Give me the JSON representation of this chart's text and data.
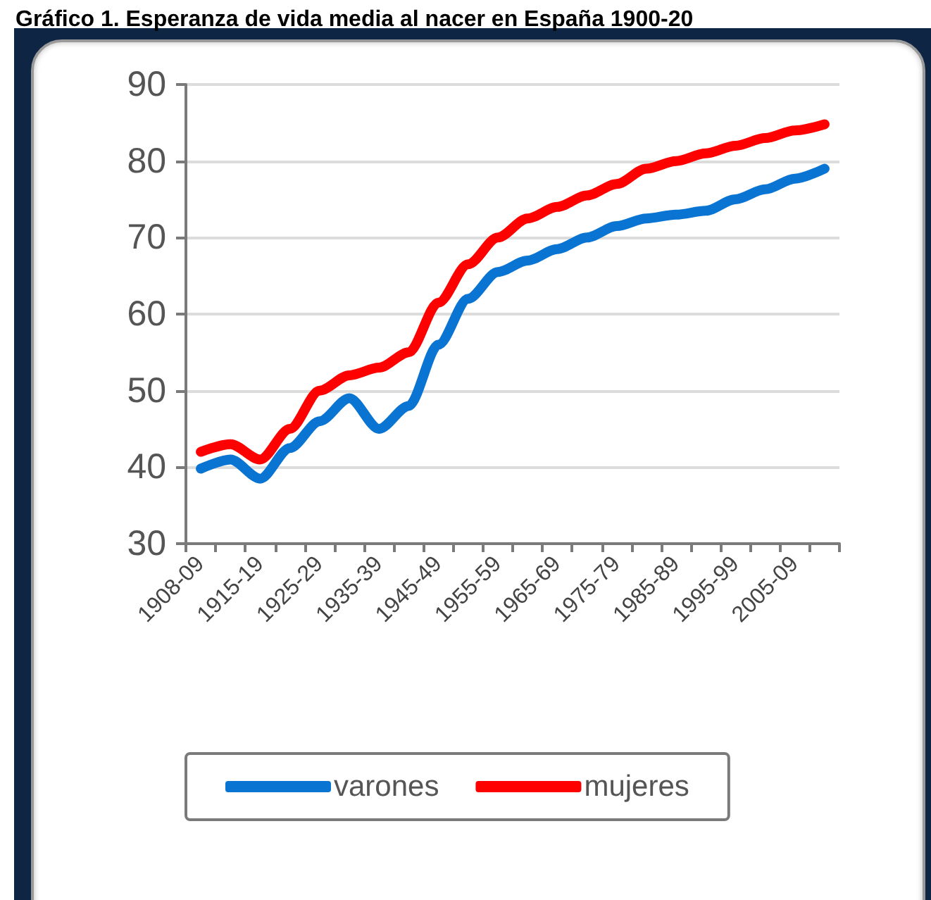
{
  "chart_data": {
    "type": "line",
    "title": "Gráfico 1. Esperanza de vida media al nacer en España 1900-20",
    "categories": [
      "1908-09",
      null,
      "1915-19",
      null,
      "1925-29",
      null,
      "1935-39",
      null,
      "1945-49",
      null,
      "1955-59",
      null,
      "1965-69",
      null,
      "1975-79",
      null,
      "1985-89",
      null,
      "1995-99",
      null,
      "2005-09",
      null
    ],
    "series": [
      {
        "name": "varones",
        "color": "#0a74d2",
        "values": [
          39.8,
          41,
          38.5,
          42.5,
          46,
          49,
          45,
          48,
          56,
          62,
          65.5,
          67,
          68.5,
          70,
          71.5,
          72.5,
          73,
          73.5,
          75,
          76.3,
          77.7,
          79
        ]
      },
      {
        "name": "mujeres",
        "color": "#ff0000",
        "values": [
          42,
          43,
          41,
          45,
          50,
          52,
          53,
          55,
          61.5,
          66.5,
          70,
          72.5,
          74,
          75.5,
          77,
          79,
          80,
          81,
          82,
          83,
          84,
          84.8
        ]
      }
    ],
    "ylim": [
      30,
      90
    ],
    "yticks": [
      30,
      40,
      50,
      60,
      70,
      80,
      90
    ],
    "grid": "y",
    "legend": "bottom"
  }
}
